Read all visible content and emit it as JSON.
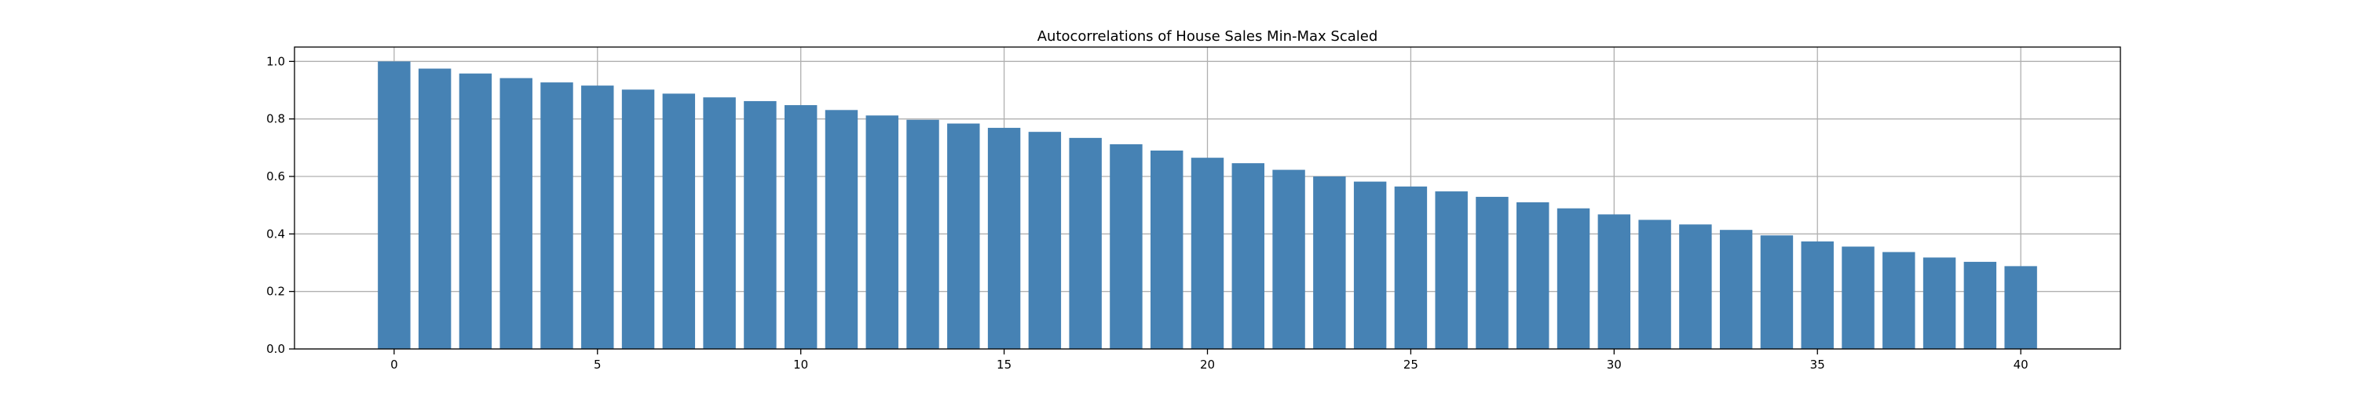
{
  "chart_data": {
    "type": "bar",
    "title": "Autocorrelations of House Sales Min-Max Scaled",
    "xlabel": "",
    "ylabel": "",
    "x": [
      0,
      1,
      2,
      3,
      4,
      5,
      6,
      7,
      8,
      9,
      10,
      11,
      12,
      13,
      14,
      15,
      16,
      17,
      18,
      19,
      20,
      21,
      22,
      23,
      24,
      25,
      26,
      27,
      28,
      29,
      30,
      31,
      32,
      33,
      34,
      35,
      36,
      37,
      38,
      39,
      40
    ],
    "values": [
      1.0,
      0.975,
      0.958,
      0.942,
      0.927,
      0.916,
      0.902,
      0.888,
      0.875,
      0.862,
      0.848,
      0.831,
      0.812,
      0.797,
      0.784,
      0.769,
      0.755,
      0.734,
      0.712,
      0.69,
      0.665,
      0.646,
      0.623,
      0.6,
      0.582,
      0.565,
      0.548,
      0.529,
      0.51,
      0.489,
      0.468,
      0.449,
      0.433,
      0.414,
      0.395,
      0.374,
      0.356,
      0.337,
      0.318,
      0.303,
      0.288
    ],
    "xlim": [
      -2.45,
      42.45
    ],
    "ylim": [
      0,
      1.05
    ],
    "xticks": [
      0,
      5,
      10,
      15,
      20,
      25,
      30,
      35,
      40
    ],
    "xtick_labels": [
      "0",
      "5",
      "10",
      "15",
      "20",
      "25",
      "30",
      "35",
      "40"
    ],
    "yticks": [
      0.0,
      0.2,
      0.4,
      0.6,
      0.8,
      1.0
    ],
    "ytick_labels": [
      "0.0",
      "0.2",
      "0.4",
      "0.6",
      "0.8",
      "1.0"
    ],
    "grid": true,
    "bar_color": "#4682b4",
    "grid_color": "#b0b0b0"
  }
}
